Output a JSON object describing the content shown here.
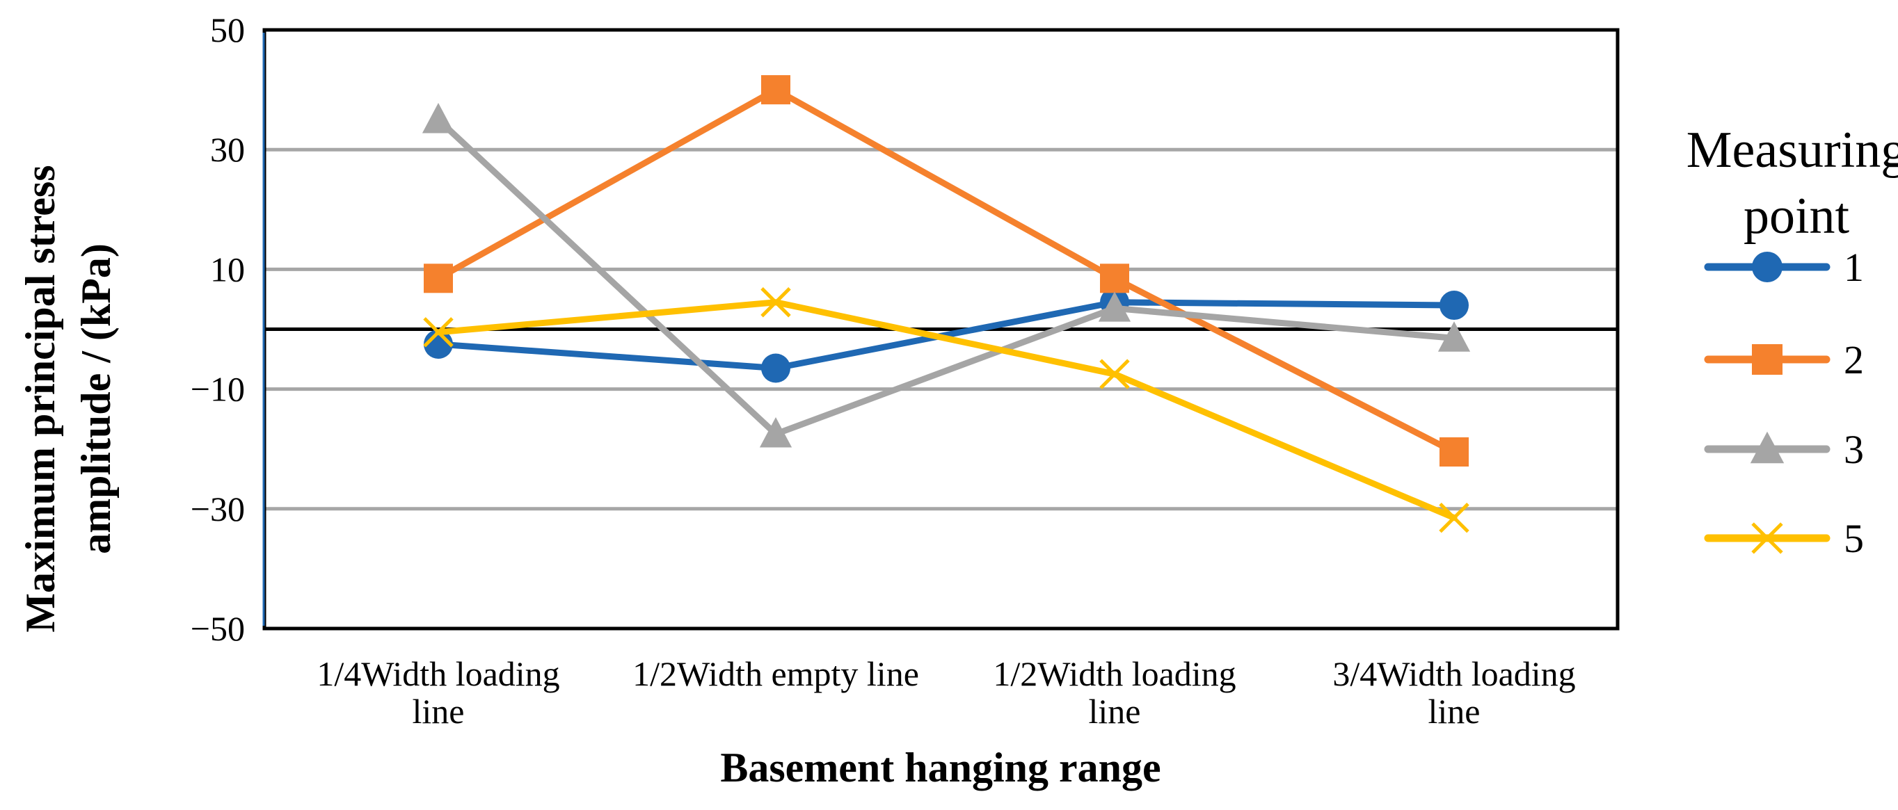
{
  "chart_data": {
    "type": "line",
    "title": "",
    "xlabel": "Basement hanging range",
    "ylabel_lines": [
      "Maximum principal stress",
      "amplitude / (kPa)"
    ],
    "categories": [
      [
        "1/4Width loading",
        "line"
      ],
      [
        "1/2Width empty line"
      ],
      [
        "1/2Width loading",
        "line"
      ],
      [
        "3/4Width loading",
        "line"
      ]
    ],
    "yticks": [
      "50",
      "30",
      "10",
      "−10",
      "−30",
      "−50"
    ],
    "ylim": [
      -50,
      50
    ],
    "ytick_values": [
      50,
      30,
      10,
      -10,
      -30,
      -50
    ],
    "grid": true,
    "zero_line": true,
    "legend": {
      "title_lines": [
        "Measuring",
        "point"
      ],
      "placement": "right"
    },
    "series": [
      {
        "name": "1",
        "marker": "circle",
        "color": "#1F68B3",
        "values": [
          -2.5,
          -6.5,
          4.5,
          4
        ]
      },
      {
        "name": "2",
        "marker": "square",
        "color": "#F5812D",
        "values": [
          8.5,
          40,
          8.5,
          -20.5
        ]
      },
      {
        "name": "3",
        "marker": "triangle",
        "color": "#A5A5A5",
        "values": [
          35,
          -17.5,
          3.5,
          -1.5
        ]
      },
      {
        "name": "5",
        "marker": "x",
        "color": "#FFC000",
        "values": [
          -0.5,
          4.5,
          -7.5,
          -31.5
        ]
      }
    ]
  }
}
